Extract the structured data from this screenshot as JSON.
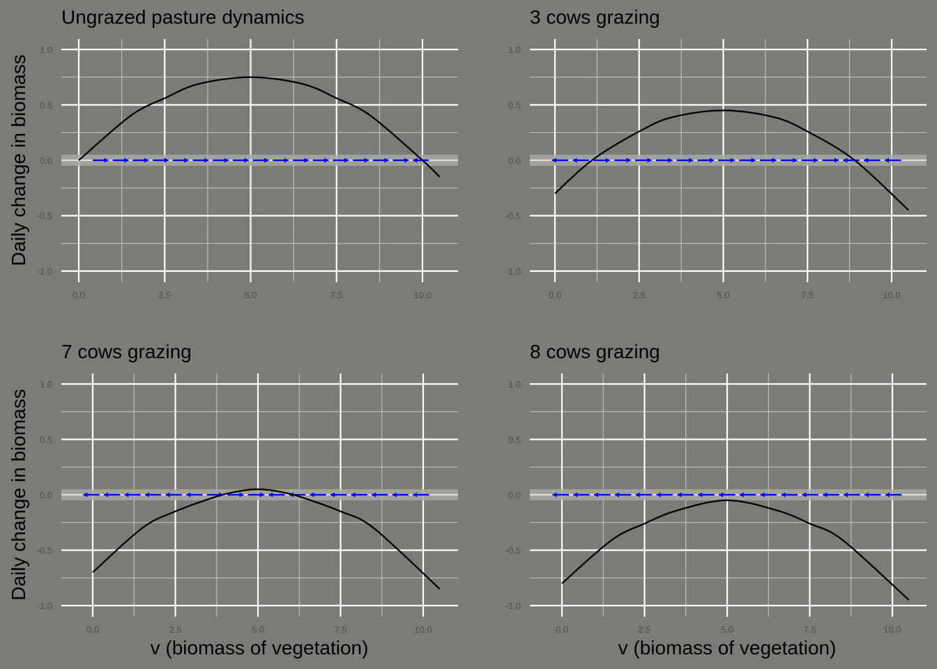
{
  "figure": {
    "ylabel": "Daily change in biomass",
    "xlabel": "v (biomass of vegetation)"
  },
  "colors": {
    "background": "#7b7c77",
    "grid_major": "#ffffff",
    "grid_minor": "#c9cac5",
    "curve": "#000000",
    "flow_arrows": "#0000ff",
    "zero_band": "#a8a9a4"
  },
  "chart_data": [
    {
      "type": "line",
      "title": "Ungrazed pasture dynamics",
      "xlim": [
        -0.4,
        11.2
      ],
      "ylim": [
        -1.0,
        1.0
      ],
      "x_ticks": [
        "0.0",
        "2.5",
        "5.0",
        "7.5",
        "10.0"
      ],
      "y_ticks": [
        "1.0",
        "0.5",
        "0.0",
        "-0.5",
        "-1.0"
      ],
      "series": [
        {
          "x": [
            0,
            1.5,
            2.5,
            3.5,
            5.0,
            6.5,
            7.5,
            8.5,
            10.0,
            10.5
          ],
          "y": [
            0,
            0.4,
            0.56,
            0.69,
            0.75,
            0.69,
            0.56,
            0.4,
            0,
            -0.15
          ]
        }
      ],
      "flow": {
        "x_start": 0.3,
        "x_end": 10.2,
        "segments": 17,
        "directions": [
          "right",
          "right",
          "right",
          "right",
          "right",
          "right",
          "right",
          "right",
          "right",
          "right",
          "right",
          "right",
          "right",
          "right",
          "right",
          "right",
          "left"
        ]
      }
    },
    {
      "type": "line",
      "title": "3 cows grazing",
      "xlim": [
        -0.4,
        11.2
      ],
      "ylim": [
        -1.0,
        1.0
      ],
      "x_ticks": [
        "0.0",
        "2.5",
        "5.0",
        "7.5",
        "10.0"
      ],
      "y_ticks": [
        "1.0",
        "0.5",
        "0.0",
        "-0.5",
        "-1.0"
      ],
      "series": [
        {
          "x": [
            0,
            1.1,
            2.5,
            3.5,
            5.0,
            6.5,
            7.5,
            8.9,
            10.5
          ],
          "y": [
            -0.3,
            0,
            0.26,
            0.39,
            0.45,
            0.39,
            0.26,
            0,
            -0.45
          ]
        }
      ],
      "flow": {
        "x_start": -0.2,
        "x_end": 10.3,
        "segments": 17,
        "directions": [
          "left",
          "left",
          "right",
          "right",
          "right",
          "right",
          "right",
          "right",
          "right",
          "right",
          "right",
          "right",
          "right",
          "right",
          "left",
          "left",
          "left"
        ]
      }
    },
    {
      "type": "line",
      "title": "7 cows grazing",
      "xlim": [
        -0.4,
        11.2
      ],
      "ylim": [
        -1.0,
        1.0
      ],
      "x_ticks": [
        "0.0",
        "2.5",
        "5.0",
        "7.5",
        "10.0"
      ],
      "y_ticks": [
        "1.0",
        "0.5",
        "0.0",
        "-0.5",
        "-1.0"
      ],
      "series": [
        {
          "x": [
            0,
            1.5,
            2.5,
            3.5,
            4.2,
            5.0,
            5.8,
            6.5,
            7.5,
            8.5,
            10.5
          ],
          "y": [
            -0.7,
            -0.3,
            -0.15,
            -0.04,
            0.02,
            0.05,
            0.02,
            -0.04,
            -0.15,
            -0.3,
            -0.85
          ]
        }
      ],
      "flow": {
        "x_start": -0.4,
        "x_end": 10.2,
        "segments": 17,
        "directions": [
          "left",
          "left",
          "left",
          "left",
          "left",
          "left",
          "right",
          "right",
          "right",
          "left",
          "left",
          "left",
          "left",
          "left",
          "left",
          "left",
          "left"
        ]
      }
    },
    {
      "type": "line",
      "title": "8 cows grazing",
      "xlim": [
        -0.4,
        11.2
      ],
      "ylim": [
        -1.0,
        1.0
      ],
      "x_ticks": [
        "0.0",
        "2.5",
        "5.0",
        "7.5",
        "10.0"
      ],
      "y_ticks": [
        "1.0",
        "0.5",
        "0.0",
        "-0.5",
        "-1.0"
      ],
      "series": [
        {
          "x": [
            0,
            1.5,
            2.5,
            3.5,
            5.0,
            6.5,
            7.5,
            8.5,
            10.5
          ],
          "y": [
            -0.8,
            -0.41,
            -0.26,
            -0.14,
            -0.05,
            -0.14,
            -0.26,
            -0.41,
            -0.95
          ]
        }
      ],
      "flow": {
        "x_start": -0.4,
        "x_end": 10.3,
        "segments": 17,
        "directions": [
          "left",
          "left",
          "left",
          "left",
          "left",
          "left",
          "left",
          "left",
          "left",
          "left",
          "left",
          "left",
          "left",
          "left",
          "left",
          "left",
          "left"
        ]
      }
    }
  ]
}
